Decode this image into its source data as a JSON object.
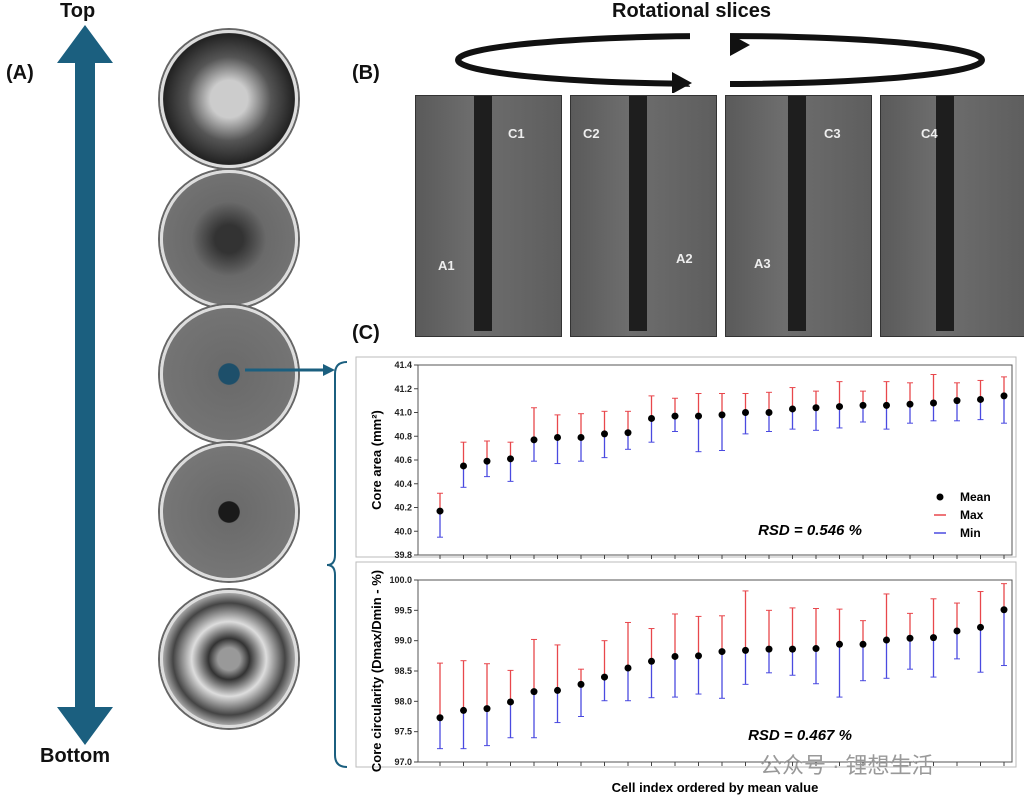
{
  "panel_a": {
    "label": "(A)",
    "top": "Top",
    "bottom": "Bottom"
  },
  "panel_b": {
    "label": "(B)",
    "title": "Rotational slices",
    "slices": [
      "C1",
      "C2",
      "C3",
      "C4"
    ],
    "annotations": [
      "A1",
      "A2",
      "A3"
    ]
  },
  "panel_c": {
    "label": "(C)"
  },
  "watermark": "公众号 · 锂想生活",
  "colors": {
    "arrow": "#1b5f7f",
    "mean": "#000000",
    "max": "#e8474c",
    "min": "#4a4ae0"
  },
  "chart_data": [
    {
      "type": "errorbar",
      "ylabel": "Core area (mm²)",
      "ylim": [
        39.8,
        41.4
      ],
      "yticks": [
        "39.8",
        "40.0",
        "40.2",
        "40.4",
        "40.6",
        "40.8",
        "41.0",
        "41.2",
        "41.4"
      ],
      "legend": [
        "Mean",
        "Max",
        "Min"
      ],
      "legend_position": "bottom-right",
      "annotation": "RSD = 0.546 %",
      "series": [
        {
          "name": "Mean",
          "values": [
            40.17,
            40.55,
            40.59,
            40.61,
            40.77,
            40.79,
            40.79,
            40.82,
            40.83,
            40.95,
            40.97,
            40.97,
            40.98,
            41.0,
            41.0,
            41.03,
            41.04,
            41.05,
            41.06,
            41.06,
            41.07,
            41.08,
            41.1,
            41.11,
            41.14
          ]
        },
        {
          "name": "Max",
          "values": [
            40.32,
            40.75,
            40.76,
            40.75,
            41.04,
            40.98,
            40.99,
            41.01,
            41.01,
            41.14,
            41.12,
            41.16,
            41.16,
            41.16,
            41.17,
            41.21,
            41.18,
            41.26,
            41.18,
            41.26,
            41.25,
            41.32,
            41.25,
            41.27,
            41.3
          ]
        },
        {
          "name": "Min",
          "values": [
            39.95,
            40.37,
            40.46,
            40.42,
            40.59,
            40.57,
            40.59,
            40.62,
            40.69,
            40.75,
            40.84,
            40.67,
            40.68,
            40.82,
            40.84,
            40.86,
            40.85,
            40.87,
            40.92,
            40.86,
            40.91,
            40.93,
            40.93,
            40.94,
            40.91
          ]
        }
      ]
    },
    {
      "type": "errorbar",
      "ylabel": "Core circularity (Dmax/Dmin - %)",
      "xlabel": "Cell index ordered by mean value",
      "ylim": [
        97.0,
        100.0
      ],
      "yticks": [
        "97.0",
        "97.5",
        "98.0",
        "98.5",
        "99.0",
        "99.5",
        "100.0"
      ],
      "annotation": "RSD = 0.467 %",
      "series": [
        {
          "name": "Mean",
          "values": [
            97.73,
            97.85,
            97.88,
            97.99,
            98.16,
            98.18,
            98.28,
            98.4,
            98.55,
            98.66,
            98.74,
            98.75,
            98.82,
            98.84,
            98.86,
            98.86,
            98.87,
            98.94,
            98.94,
            99.01,
            99.04,
            99.05,
            99.16,
            99.22,
            99.51
          ]
        },
        {
          "name": "Max",
          "values": [
            98.63,
            98.67,
            98.62,
            98.51,
            99.02,
            98.93,
            98.53,
            99.0,
            99.3,
            99.2,
            99.44,
            99.4,
            99.41,
            99.82,
            99.5,
            99.54,
            99.53,
            99.52,
            99.33,
            99.77,
            99.45,
            99.69,
            99.62,
            99.81,
            99.94
          ]
        },
        {
          "name": "Min",
          "values": [
            97.22,
            97.22,
            97.27,
            97.4,
            97.4,
            97.65,
            97.75,
            98.01,
            98.01,
            98.06,
            98.07,
            98.12,
            98.05,
            98.28,
            98.47,
            98.43,
            98.29,
            98.07,
            98.34,
            98.38,
            98.53,
            98.4,
            98.7,
            98.48,
            98.59
          ]
        }
      ]
    }
  ]
}
